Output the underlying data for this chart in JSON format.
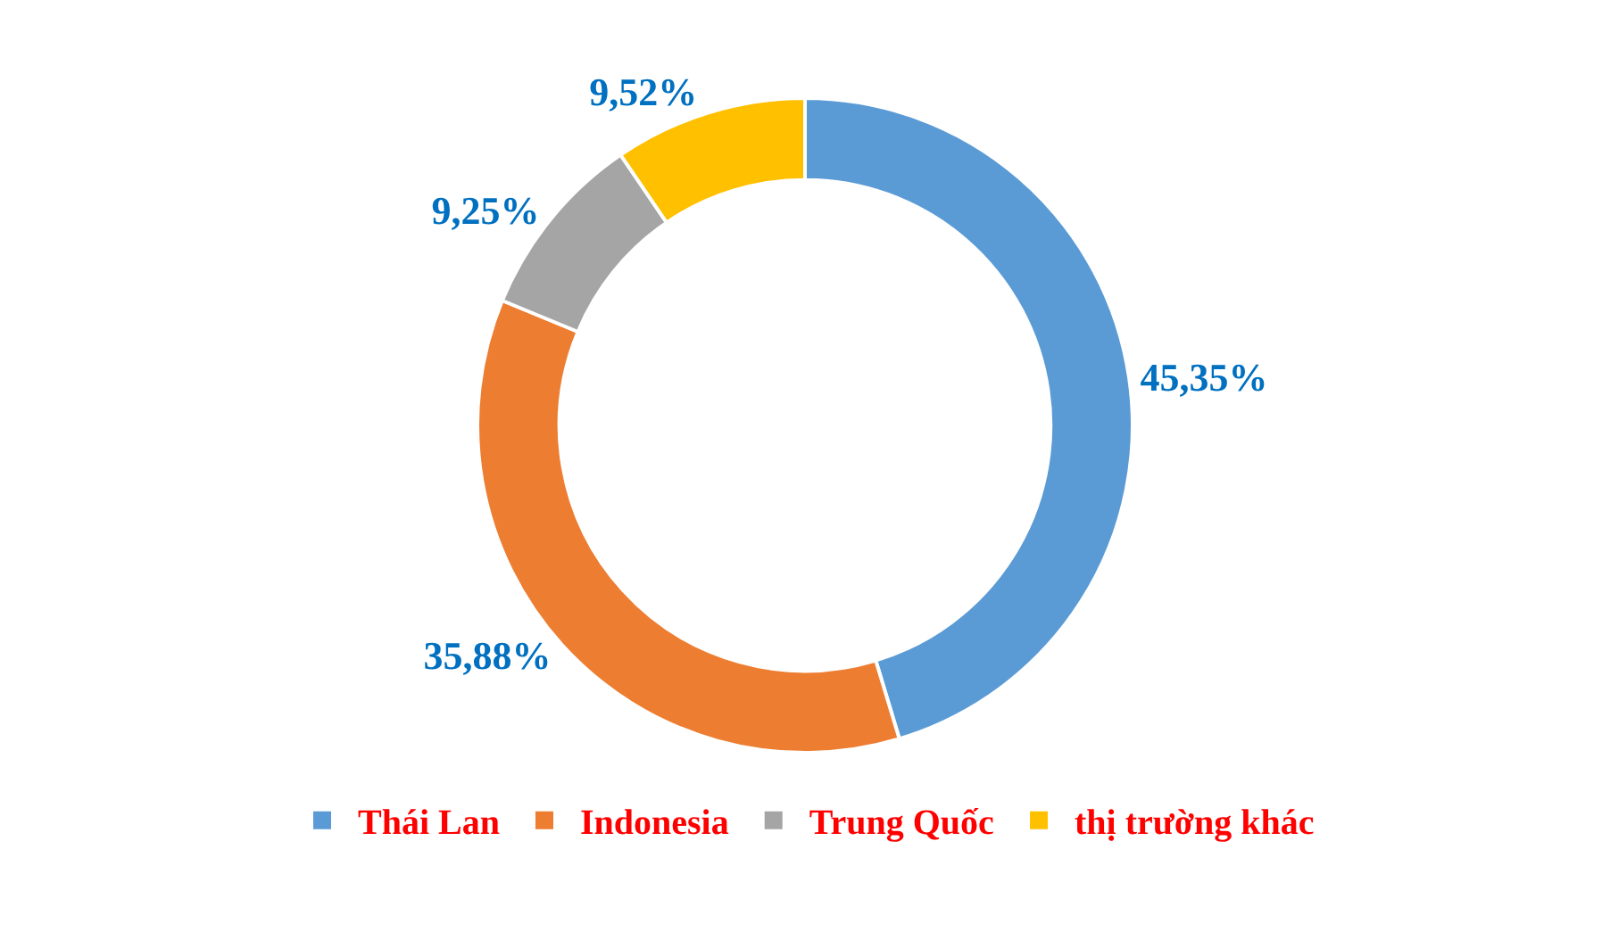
{
  "chart_data": {
    "type": "donut",
    "categories": [
      "Thái Lan",
      "Indonesia",
      "Trung Quốc",
      "thị trường khác"
    ],
    "values": [
      45.35,
      35.88,
      9.25,
      9.52
    ],
    "colors": [
      "#5b9bd5",
      "#ed7d31",
      "#a5a5a5",
      "#ffc000"
    ],
    "value_labels": [
      "45,35%",
      "35,88%",
      "9,25%",
      "9,52%"
    ],
    "legend": "bottom"
  }
}
